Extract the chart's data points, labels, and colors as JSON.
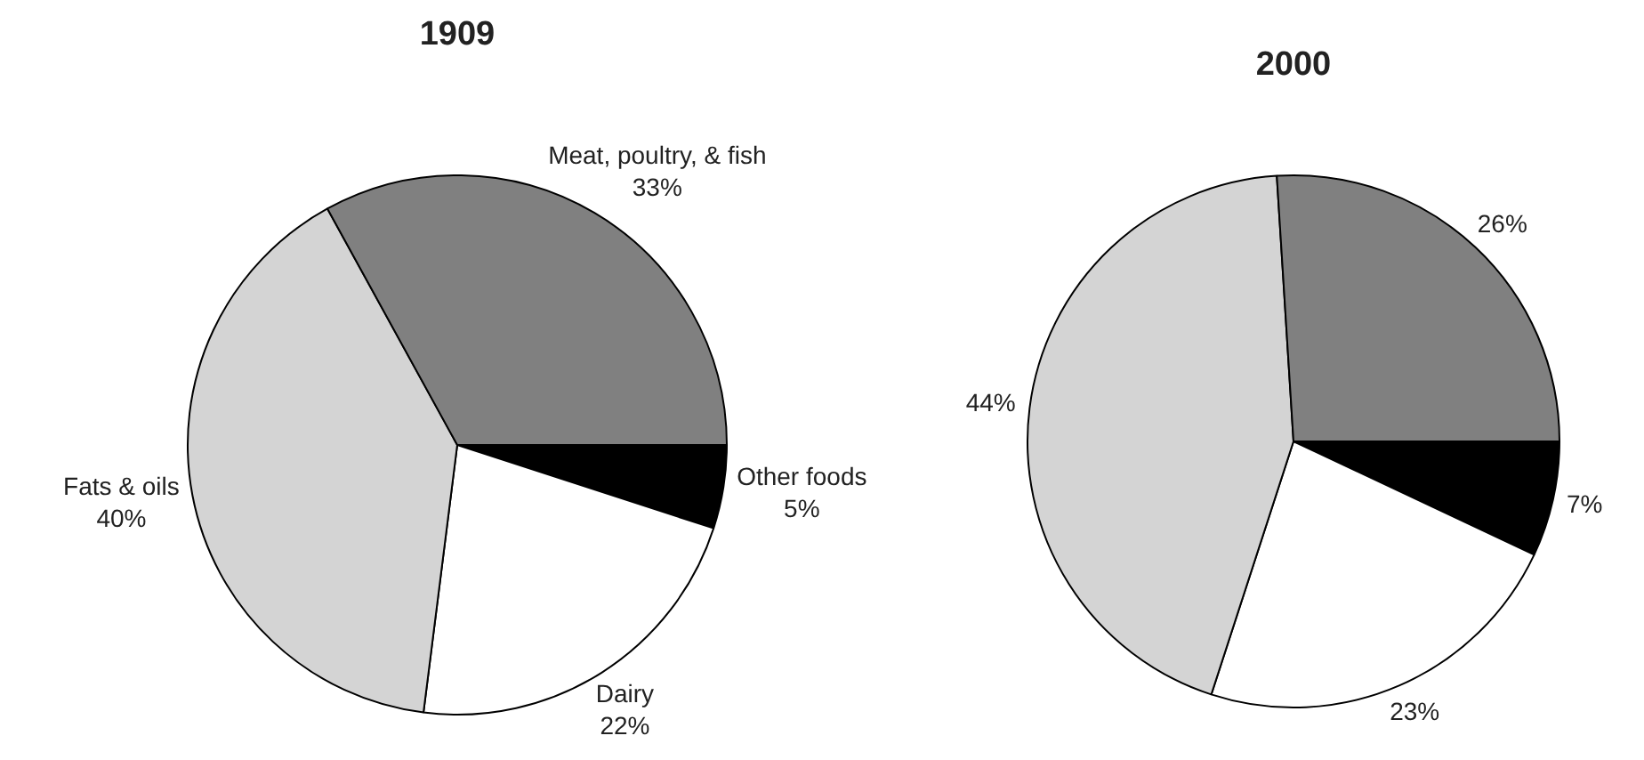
{
  "chart_data": [
    {
      "type": "pie",
      "title": "1909",
      "categories": [
        "Other foods",
        "Dairy",
        "Fats & oils",
        "Meat, poultry, & fish"
      ],
      "values": [
        5,
        22,
        40,
        33
      ],
      "colors": [
        "#000000",
        "#ffffff",
        "#d4d4d4",
        "#808080"
      ],
      "value_labels": [
        "5%",
        "22%",
        "40%",
        "33%"
      ]
    },
    {
      "type": "pie",
      "title": "2000",
      "categories": [
        null,
        null,
        null,
        null
      ],
      "values": [
        7,
        23,
        44,
        26
      ],
      "colors": [
        "#000000",
        "#ffffff",
        "#d4d4d4",
        "#808080"
      ],
      "value_labels": [
        "7%",
        "23%",
        "44%",
        "26%"
      ]
    }
  ]
}
